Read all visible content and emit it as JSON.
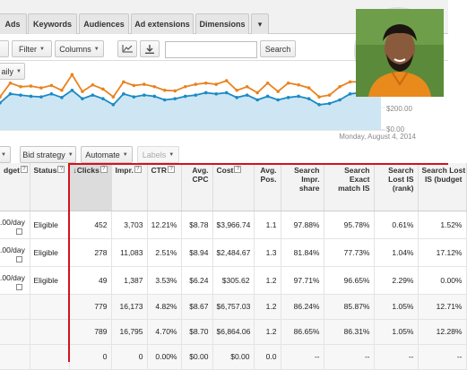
{
  "tabs": [
    "Ads",
    "Keywords",
    "Audiences",
    "Ad extensions",
    "Dimensions",
    "▾"
  ],
  "toolbar": {
    "filter_label": "Filter",
    "columns_label": "Columns",
    "search_button": "Search",
    "search_placeholder": ""
  },
  "segment": {
    "daily_label": "aily"
  },
  "chart_data": {
    "type": "line",
    "title": "",
    "date_label": "Monday, August 4, 2014",
    "y_right_ticks": [
      "$200.00",
      "$0.00"
    ],
    "series": [
      {
        "color": "#e8831f",
        "values": [
          0.55,
          0.78,
          0.72,
          0.73,
          0.7,
          0.74,
          0.66,
          0.92,
          0.64,
          0.75,
          0.68,
          0.55,
          0.8,
          0.74,
          0.76,
          0.72,
          0.66,
          0.65,
          0.72,
          0.76,
          0.78,
          0.76,
          0.82,
          0.66,
          0.72,
          0.62,
          0.78,
          0.64,
          0.78,
          0.75,
          0.7,
          0.55,
          0.58,
          0.72,
          0.8,
          0.8,
          0.86,
          0.74
        ]
      },
      {
        "color": "#1a8ac6",
        "values": [
          0.45,
          0.6,
          0.58,
          0.56,
          0.55,
          0.6,
          0.54,
          0.66,
          0.52,
          0.58,
          0.52,
          0.42,
          0.6,
          0.55,
          0.58,
          0.56,
          0.5,
          0.52,
          0.56,
          0.58,
          0.62,
          0.6,
          0.62,
          0.54,
          0.58,
          0.5,
          0.56,
          0.5,
          0.54,
          0.56,
          0.52,
          0.42,
          0.44,
          0.5,
          0.6,
          0.62,
          0.66,
          0.7
        ]
      }
    ]
  },
  "toolbar2": {
    "bid_strategy_label": "Bid strategy",
    "automate_label": "Automate",
    "labels_label": "Labels"
  },
  "table": {
    "headers": {
      "budget": "dget",
      "status": "Status",
      "clicks": "Clicks",
      "impr": "Impr.",
      "ctr": "CTR",
      "avg_cpc_1": "Avg.",
      "avg_cpc_2": "CPC",
      "cost": "Cost",
      "avg_pos_1": "Avg.",
      "avg_pos_2": "Pos.",
      "search_impr_1": "Search",
      "search_impr_2": "Impr.",
      "search_impr_3": "share",
      "exact_1": "Search",
      "exact_2": "Exact",
      "exact_3": "match IS",
      "lost_rank_1": "Search",
      "lost_rank_2": "Lost IS",
      "lost_rank_3": "(rank)",
      "lost_budget_1": "Search Lost",
      "lost_budget_2": "IS (budget"
    },
    "rows": [
      {
        "budget": ".00/day",
        "status": "Eligible",
        "clicks": "452",
        "impr": "3,703",
        "ctr": "12.21%",
        "cpc": "$8.78",
        "cost": "$3,966.74",
        "pos": "1.1",
        "impr_share": "97.88%",
        "exact": "95.78%",
        "lost_rank": "0.61%",
        "lost_budget": "1.52%"
      },
      {
        "budget": ".00/day",
        "status": "Eligible",
        "clicks": "278",
        "impr": "11,083",
        "ctr": "2.51%",
        "cpc": "$8.94",
        "cost": "$2,484.67",
        "pos": "1.3",
        "impr_share": "81.84%",
        "exact": "77.73%",
        "lost_rank": "1.04%",
        "lost_budget": "17.12%"
      },
      {
        "budget": ".00/day",
        "status": "Eligible",
        "clicks": "49",
        "impr": "1,387",
        "ctr": "3.53%",
        "cpc": "$6.24",
        "cost": "$305.62",
        "pos": "1.2",
        "impr_share": "97.71%",
        "exact": "96.65%",
        "lost_rank": "2.29%",
        "lost_budget": "0.00%"
      }
    ],
    "totals": [
      {
        "clicks": "779",
        "impr": "16,173",
        "ctr": "4.82%",
        "cpc": "$8.67",
        "cost": "$6,757.03",
        "pos": "1.2",
        "impr_share": "86.24%",
        "exact": "85.87%",
        "lost_rank": "1.05%",
        "lost_budget": "12.71%"
      },
      {
        "clicks": "789",
        "impr": "16,795",
        "ctr": "4.70%",
        "cpc": "$8.70",
        "cost": "$6,864.06",
        "pos": "1.2",
        "impr_share": "86.65%",
        "exact": "86.31%",
        "lost_rank": "1.05%",
        "lost_budget": "12.28%"
      },
      {
        "clicks": "0",
        "impr": "0",
        "ctr": "0.00%",
        "cpc": "$0.00",
        "cost": "$0.00",
        "pos": "0.0",
        "impr_share": "--",
        "exact": "--",
        "lost_rank": "--",
        "lost_budget": "--"
      }
    ]
  },
  "colors": {
    "highlight": "#d4121c",
    "orange_series": "#e8831f",
    "blue_series": "#1a8ac6"
  }
}
